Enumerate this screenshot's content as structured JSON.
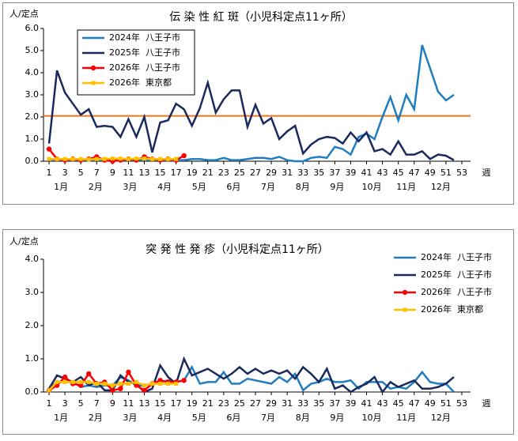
{
  "chart_data": [
    {
      "type": "line",
      "title": "伝 染 性 紅 斑（小児科定点11ヶ所）",
      "y_label": "人/定点",
      "x_label": "週",
      "months": [
        "1月",
        "2月",
        "3月",
        "4月",
        "5月",
        "6月",
        "7月",
        "8月",
        "9月",
        "10月",
        "11月",
        "12月"
      ],
      "x": [
        1,
        2,
        3,
        4,
        5,
        6,
        7,
        8,
        9,
        10,
        11,
        12,
        13,
        14,
        15,
        16,
        17,
        18,
        19,
        20,
        21,
        22,
        23,
        24,
        25,
        26,
        27,
        28,
        29,
        30,
        31,
        32,
        33,
        34,
        35,
        36,
        37,
        38,
        39,
        40,
        41,
        42,
        43,
        44,
        45,
        46,
        47,
        48,
        49,
        50,
        51,
        52,
        53
      ],
      "xlim": [
        0.3,
        54.1
      ],
      "xticks": [
        1,
        3,
        5,
        7,
        9,
        11,
        13,
        15,
        17,
        19,
        21,
        23,
        25,
        27,
        29,
        31,
        33,
        35,
        37,
        39,
        41,
        43,
        45,
        47,
        49,
        51,
        53
      ],
      "ylim": [
        0,
        6
      ],
      "yticks": [
        {
          "value": 0,
          "label": "0.0"
        },
        {
          "value": 1,
          "label": "1.0"
        },
        {
          "value": 2,
          "label": "2.0"
        },
        {
          "value": 3,
          "label": "3.0"
        },
        {
          "value": 4,
          "label": "4.0"
        },
        {
          "value": 5,
          "label": "5.0"
        },
        {
          "value": 6,
          "label": "6.0"
        }
      ],
      "grid": false,
      "legend": "upper left",
      "hline": {
        "value": 2.05,
        "color": "#e87722"
      },
      "series": [
        {
          "name": "2024年  八王子市",
          "color": "#1f7dc0",
          "marker": null,
          "values": [
            0.05,
            0.05,
            0.05,
            0.05,
            0.05,
            0.05,
            0.05,
            0.05,
            0.05,
            0.05,
            0.05,
            0.05,
            0.05,
            0.05,
            0.05,
            0.05,
            0.05,
            0.05,
            0.1,
            0.1,
            0.05,
            0.05,
            0.15,
            0.05,
            0.05,
            0.1,
            0.15,
            0.15,
            0.1,
            0.2,
            0.05,
            0,
            0,
            0.15,
            0.2,
            0.15,
            0.65,
            0.55,
            0.3,
            1.1,
            1.25,
            1.0,
            2.0,
            2.9,
            1.85,
            3.0,
            2.35,
            5.25,
            4.2,
            3.15,
            2.75,
            3.0,
            null
          ]
        },
        {
          "name": "2025年  八王子市",
          "color": "#1b2a5e",
          "marker": null,
          "values": [
            0.8,
            4.1,
            3.1,
            2.6,
            2.1,
            2.35,
            1.55,
            1.6,
            1.55,
            1.1,
            1.9,
            1.1,
            2.0,
            0.4,
            1.75,
            1.85,
            2.6,
            2.35,
            1.6,
            2.4,
            3.55,
            2.2,
            2.8,
            3.2,
            3.2,
            1.55,
            2.55,
            1.7,
            1.95,
            1.0,
            1.35,
            1.6,
            0.35,
            0.75,
            1.0,
            1.1,
            1.05,
            0.8,
            1.3,
            0.9,
            1.3,
            0.45,
            0.55,
            0.3,
            0.9,
            0.3,
            0.3,
            0.45,
            0.1,
            0.3,
            0.25,
            0.05,
            null
          ]
        },
        {
          "name": "2026年  八王子市",
          "color": "#ff0000",
          "marker": "circle",
          "values": [
            0.55,
            0.1,
            0.05,
            0.1,
            0.05,
            0.1,
            0.2,
            0.05,
            0,
            0.05,
            0.1,
            0.05,
            0.2,
            0.1,
            0.05,
            0.1,
            0.05,
            0.25,
            null,
            null,
            null,
            null,
            null,
            null,
            null,
            null,
            null,
            null,
            null,
            null,
            null,
            null,
            null,
            null,
            null,
            null,
            null,
            null,
            null,
            null,
            null,
            null,
            null,
            null,
            null,
            null,
            null,
            null,
            null,
            null,
            null,
            null,
            null
          ]
        },
        {
          "name": "2026年  東京都",
          "color": "#ffc000",
          "marker": "square",
          "values": [
            0.1,
            0.1,
            0.1,
            0.1,
            0.1,
            0.08,
            0.1,
            0.1,
            0.12,
            0.12,
            0.1,
            0.12,
            0.12,
            0.1,
            0.1,
            0.1,
            0.1,
            null,
            null,
            null,
            null,
            null,
            null,
            null,
            null,
            null,
            null,
            null,
            null,
            null,
            null,
            null,
            null,
            null,
            null,
            null,
            null,
            null,
            null,
            null,
            null,
            null,
            null,
            null,
            null,
            null,
            null,
            null,
            null,
            null,
            null,
            null,
            null
          ]
        }
      ]
    },
    {
      "type": "line",
      "title": "突 発 性 発 疹（小児科定点11ヶ所）",
      "y_label": "人/定点",
      "x_label": "週",
      "months": [
        "1月",
        "2月",
        "3月",
        "4月",
        "5月",
        "6月",
        "7月",
        "8月",
        "9月",
        "10月",
        "11月",
        "12月"
      ],
      "x": [
        1,
        2,
        3,
        4,
        5,
        6,
        7,
        8,
        9,
        10,
        11,
        12,
        13,
        14,
        15,
        16,
        17,
        18,
        19,
        20,
        21,
        22,
        23,
        24,
        25,
        26,
        27,
        28,
        29,
        30,
        31,
        32,
        33,
        34,
        35,
        36,
        37,
        38,
        39,
        40,
        41,
        42,
        43,
        44,
        45,
        46,
        47,
        48,
        49,
        50,
        51,
        52,
        53
      ],
      "xlim": [
        0.3,
        54.1
      ],
      "xticks": [
        1,
        3,
        5,
        7,
        9,
        11,
        13,
        15,
        17,
        19,
        21,
        23,
        25,
        27,
        29,
        31,
        33,
        35,
        37,
        39,
        41,
        43,
        45,
        47,
        49,
        51,
        53
      ],
      "ylim": [
        0,
        4
      ],
      "yticks": [
        {
          "value": 0,
          "label": "0.0"
        },
        {
          "value": 1,
          "label": "1.0"
        },
        {
          "value": 2,
          "label": "2.0"
        },
        {
          "value": 3,
          "label": "3.0"
        },
        {
          "value": 4,
          "label": "4.0"
        }
      ],
      "grid": false,
      "legend": "right",
      "series": [
        {
          "name": "2024年  八王子市",
          "color": "#1f7dc0",
          "marker": null,
          "values": [
            0.1,
            0.3,
            0.3,
            0.3,
            0.15,
            0.2,
            0.15,
            0.2,
            0.2,
            0.45,
            0.35,
            0.2,
            0.2,
            0.25,
            0.3,
            0.35,
            0.3,
            0.35,
            0.75,
            0.25,
            0.3,
            0.3,
            0.6,
            0.25,
            0.25,
            0.4,
            0.35,
            0.3,
            0.25,
            0.45,
            0.3,
            0.55,
            0.05,
            0.25,
            0.3,
            0.4,
            0.3,
            0.3,
            0.35,
            0.1,
            0.3,
            0.3,
            0.3,
            0.1,
            0.15,
            0.1,
            0.3,
            0.6,
            0.3,
            0.25,
            0.25,
            0,
            null
          ]
        },
        {
          "name": "2025年  八王子市",
          "color": "#1b2a5e",
          "marker": null,
          "values": [
            0.1,
            0.5,
            0.4,
            0.3,
            0.45,
            0.2,
            0.3,
            0.05,
            0.05,
            0.5,
            0.3,
            0.25,
            0,
            0.1,
            0.8,
            0.45,
            0.25,
            1.0,
            0.5,
            0.6,
            0.7,
            0.55,
            0.4,
            0.55,
            0.75,
            0.55,
            0.7,
            0.55,
            0.65,
            0.55,
            0.65,
            0.4,
            0.75,
            0.55,
            0.3,
            0.7,
            0.1,
            0.2,
            0,
            0.15,
            0.25,
            0.45,
            0,
            0.3,
            0.15,
            0.25,
            0.35,
            0.1,
            0.1,
            0.15,
            0.25,
            0.45,
            null
          ]
        },
        {
          "name": "2026年  八王子市",
          "color": "#ff0000",
          "marker": "circle",
          "values": [
            0.05,
            0.2,
            0.45,
            0.25,
            0.2,
            0.55,
            0.25,
            0.3,
            0.05,
            0.1,
            0.6,
            0.2,
            0.05,
            0.25,
            0.35,
            0.3,
            0.3,
            0.35,
            null,
            null,
            null,
            null,
            null,
            null,
            null,
            null,
            null,
            null,
            null,
            null,
            null,
            null,
            null,
            null,
            null,
            null,
            null,
            null,
            null,
            null,
            null,
            null,
            null,
            null,
            null,
            null,
            null,
            null,
            null,
            null,
            null,
            null,
            null
          ]
        },
        {
          "name": "2026年  東京都",
          "color": "#ffc000",
          "marker": "square",
          "values": [
            0.05,
            0.3,
            0.3,
            0.3,
            0.3,
            0.3,
            0.25,
            0.25,
            0.2,
            0.25,
            0.25,
            0.3,
            0.2,
            0.25,
            0.25,
            0.25,
            0.25,
            null,
            null,
            null,
            null,
            null,
            null,
            null,
            null,
            null,
            null,
            null,
            null,
            null,
            null,
            null,
            null,
            null,
            null,
            null,
            null,
            null,
            null,
            null,
            null,
            null,
            null,
            null,
            null,
            null,
            null,
            null,
            null,
            null,
            null,
            null,
            null
          ]
        }
      ]
    }
  ]
}
